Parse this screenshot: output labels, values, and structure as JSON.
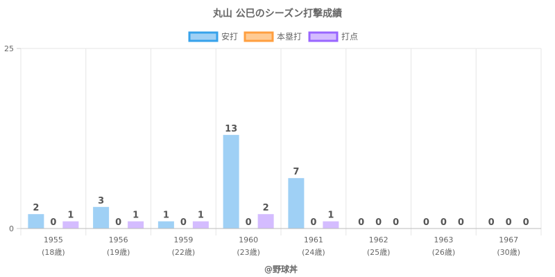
{
  "chart_data": {
    "type": "bar",
    "title": "丸山 公巳のシーズン打撃成績",
    "categories": [
      {
        "year": "1955",
        "age": "(18歳)"
      },
      {
        "year": "1956",
        "age": "(19歳)"
      },
      {
        "year": "1959",
        "age": "(22歳)"
      },
      {
        "year": "1960",
        "age": "(23歳)"
      },
      {
        "year": "1961",
        "age": "(24歳)"
      },
      {
        "year": "1962",
        "age": "(25歳)"
      },
      {
        "year": "1963",
        "age": "(26歳)"
      },
      {
        "year": "1967",
        "age": "(30歳)"
      }
    ],
    "series": [
      {
        "name": "安打",
        "fill": "#9fd0f5",
        "stroke": "#36a2eb",
        "values": [
          2,
          3,
          1,
          13,
          7,
          0,
          0,
          0
        ]
      },
      {
        "name": "本塁打",
        "fill": "#ffcb94",
        "stroke": "#ff9f40",
        "values": [
          0,
          0,
          0,
          0,
          0,
          0,
          0,
          0
        ]
      },
      {
        "name": "打点",
        "fill": "#d4bcff",
        "stroke": "#9966ff",
        "values": [
          1,
          1,
          1,
          2,
          1,
          0,
          0,
          0
        ]
      }
    ],
    "ylim": [
      0,
      25
    ],
    "yticks": [
      "0",
      "25"
    ],
    "legend_position": "top",
    "grid": true
  },
  "footer": "@野球丼"
}
